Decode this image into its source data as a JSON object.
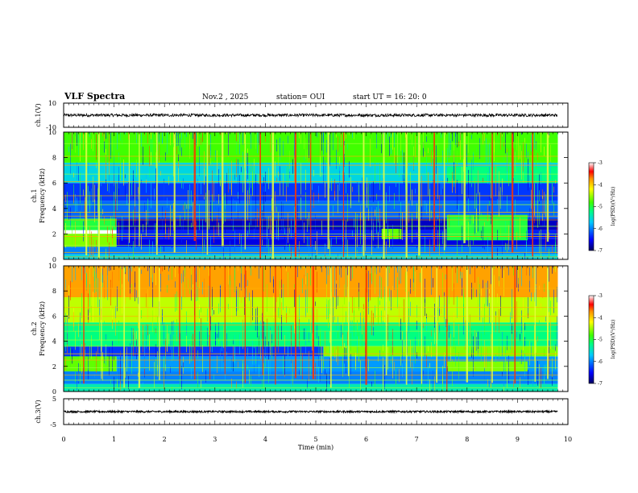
{
  "header": {
    "title": "VLF Spectra",
    "date": "Nov.2 , 2025",
    "station": "station= OUI",
    "start": "start UT = 16: 20: 0"
  },
  "chart_data": [
    {
      "type": "line",
      "name": "ch1-waveform",
      "ylabel": "ch.1(V)",
      "ylim": [
        -10,
        10
      ],
      "yticks": [
        "10",
        "-10"
      ],
      "xlim": [
        0,
        9.8
      ],
      "mean": 0,
      "amplitude": 1.2
    },
    {
      "type": "heatmap",
      "name": "ch1-spectrogram",
      "ylabel_line1": "ch.1",
      "ylabel_line2": "Frequency (kHz)",
      "ylim": [
        0,
        10
      ],
      "yticks": [
        "0",
        "2",
        "4",
        "6",
        "8",
        "10"
      ],
      "xlim": [
        0,
        9.8
      ],
      "colorbar": {
        "label": "log(PSD)(V²/Hz)",
        "ticks": [
          "-3",
          "-4",
          "-5",
          "-6",
          "-7"
        ],
        "range": [
          -7,
          -3
        ]
      },
      "regions": [
        {
          "f": [
            0,
            0.4
          ],
          "t": [
            0,
            9.8
          ],
          "v": -5.6
        },
        {
          "f": [
            0.4,
            1.0
          ],
          "t": [
            0,
            9.8
          ],
          "v": -6.0
        },
        {
          "f": [
            1.0,
            2.0
          ],
          "t": [
            0,
            1.05
          ],
          "v": -4.6
        },
        {
          "f": [
            1.0,
            1.6
          ],
          "t": [
            1.05,
            9.8
          ],
          "v": -6.6
        },
        {
          "f": [
            1.6,
            2.3
          ],
          "t": [
            1.05,
            9.8
          ],
          "v": -6.4
        },
        {
          "f": [
            2.3,
            3.2
          ],
          "t": [
            0,
            1.05
          ],
          "v": -5.0
        },
        {
          "f": [
            2.3,
            3.2
          ],
          "t": [
            1.05,
            9.8
          ],
          "v": -6.7
        },
        {
          "f": [
            3.2,
            4.6
          ],
          "t": [
            0,
            9.8
          ],
          "v": -6.1
        },
        {
          "f": [
            4.6,
            6.0
          ],
          "t": [
            0,
            9.8
          ],
          "v": -6.3
        },
        {
          "f": [
            6.0,
            7.6
          ],
          "t": [
            0,
            9.8
          ],
          "v": -5.6
        },
        {
          "f": [
            7.6,
            10.0
          ],
          "t": [
            0,
            9.8
          ],
          "v": -4.8
        },
        {
          "f": [
            1.5,
            3.5
          ],
          "t": [
            7.6,
            9.2
          ],
          "v": -5.0
        },
        {
          "f": [
            1.6,
            2.4
          ],
          "t": [
            6.3,
            6.7
          ],
          "v": -4.7
        },
        {
          "f": [
            6.0,
            7.3
          ],
          "t": [
            7.6,
            9.8
          ],
          "v": -5.2
        }
      ],
      "bands_khz": [
        0.2,
        0.55,
        1.1,
        1.8,
        2.0,
        2.6,
        3.1,
        3.4,
        3.7,
        4.3,
        5.0,
        6.1,
        6.7,
        7.4,
        8.1,
        9.1
      ],
      "spikes_min": [
        0.45,
        0.7,
        1.3,
        1.5,
        1.85,
        2.2,
        2.6,
        2.85,
        3.15,
        3.6,
        3.9,
        4.15,
        4.6,
        4.9,
        5.25,
        5.55,
        5.95,
        6.35,
        6.8,
        7.05,
        7.35,
        7.55,
        7.95,
        8.5,
        8.9,
        9.3,
        9.6
      ]
    },
    {
      "type": "heatmap",
      "name": "ch2-spectrogram",
      "ylabel_line1": "ch.2",
      "ylabel_line2": "Frequency (kHz)",
      "ylim": [
        0,
        10
      ],
      "yticks": [
        "0",
        "2",
        "4",
        "6",
        "8",
        "10"
      ],
      "xlim": [
        0,
        9.8
      ],
      "colorbar": {
        "label": "log(PSD)(V²/Hz)",
        "ticks": [
          "-3",
          "-4",
          "-5",
          "-6",
          "-7"
        ],
        "range": [
          -7,
          -3
        ]
      },
      "regions": [
        {
          "f": [
            0,
            0.6
          ],
          "t": [
            0,
            9.8
          ],
          "v": -5.4
        },
        {
          "f": [
            0.6,
            1.6
          ],
          "t": [
            0,
            9.8
          ],
          "v": -6.0
        },
        {
          "f": [
            1.6,
            3.0
          ],
          "t": [
            0,
            1.05
          ],
          "v": -4.7
        },
        {
          "f": [
            1.6,
            2.8
          ],
          "t": [
            1.05,
            9.8
          ],
          "v": -5.9
        },
        {
          "f": [
            2.8,
            3.6
          ],
          "t": [
            0,
            5.15
          ],
          "v": -6.3
        },
        {
          "f": [
            2.8,
            3.6
          ],
          "t": [
            5.15,
            9.8
          ],
          "v": -4.6
        },
        {
          "f": [
            3.6,
            5.5
          ],
          "t": [
            0,
            9.8
          ],
          "v": -5.2
        },
        {
          "f": [
            5.5,
            7.5
          ],
          "t": [
            0,
            9.8
          ],
          "v": -4.4
        },
        {
          "f": [
            7.5,
            10.0
          ],
          "t": [
            0,
            9.8
          ],
          "v": -3.8
        },
        {
          "f": [
            1.6,
            2.4
          ],
          "t": [
            7.6,
            9.2
          ],
          "v": -4.6
        }
      ],
      "bands_khz": [
        0.3,
        0.9,
        1.3,
        1.9,
        2.5,
        3.0,
        3.6,
        4.1,
        4.8,
        5.3,
        6.0,
        6.7,
        8.2
      ],
      "spikes_min": [
        0.4,
        0.75,
        1.2,
        1.5,
        1.9,
        2.3,
        2.6,
        2.9,
        3.2,
        3.6,
        3.95,
        4.2,
        4.6,
        4.95,
        5.3,
        5.65,
        6.0,
        6.4,
        6.8,
        7.1,
        7.4,
        7.6,
        8.0,
        8.5,
        8.95,
        9.35,
        9.6
      ]
    },
    {
      "type": "line",
      "name": "ch3-waveform",
      "ylabel": "ch.3(V)",
      "ylim": [
        -5,
        5
      ],
      "yticks": [
        "5",
        "-5"
      ],
      "xlim": [
        0,
        9.8
      ],
      "mean": 0,
      "amplitude": 0.35
    }
  ],
  "xaxis": {
    "label": "Time (min)",
    "lim": [
      0,
      10
    ],
    "ticks": [
      "0",
      "1",
      "2",
      "3",
      "4",
      "5",
      "6",
      "7",
      "8",
      "9",
      "10"
    ]
  }
}
